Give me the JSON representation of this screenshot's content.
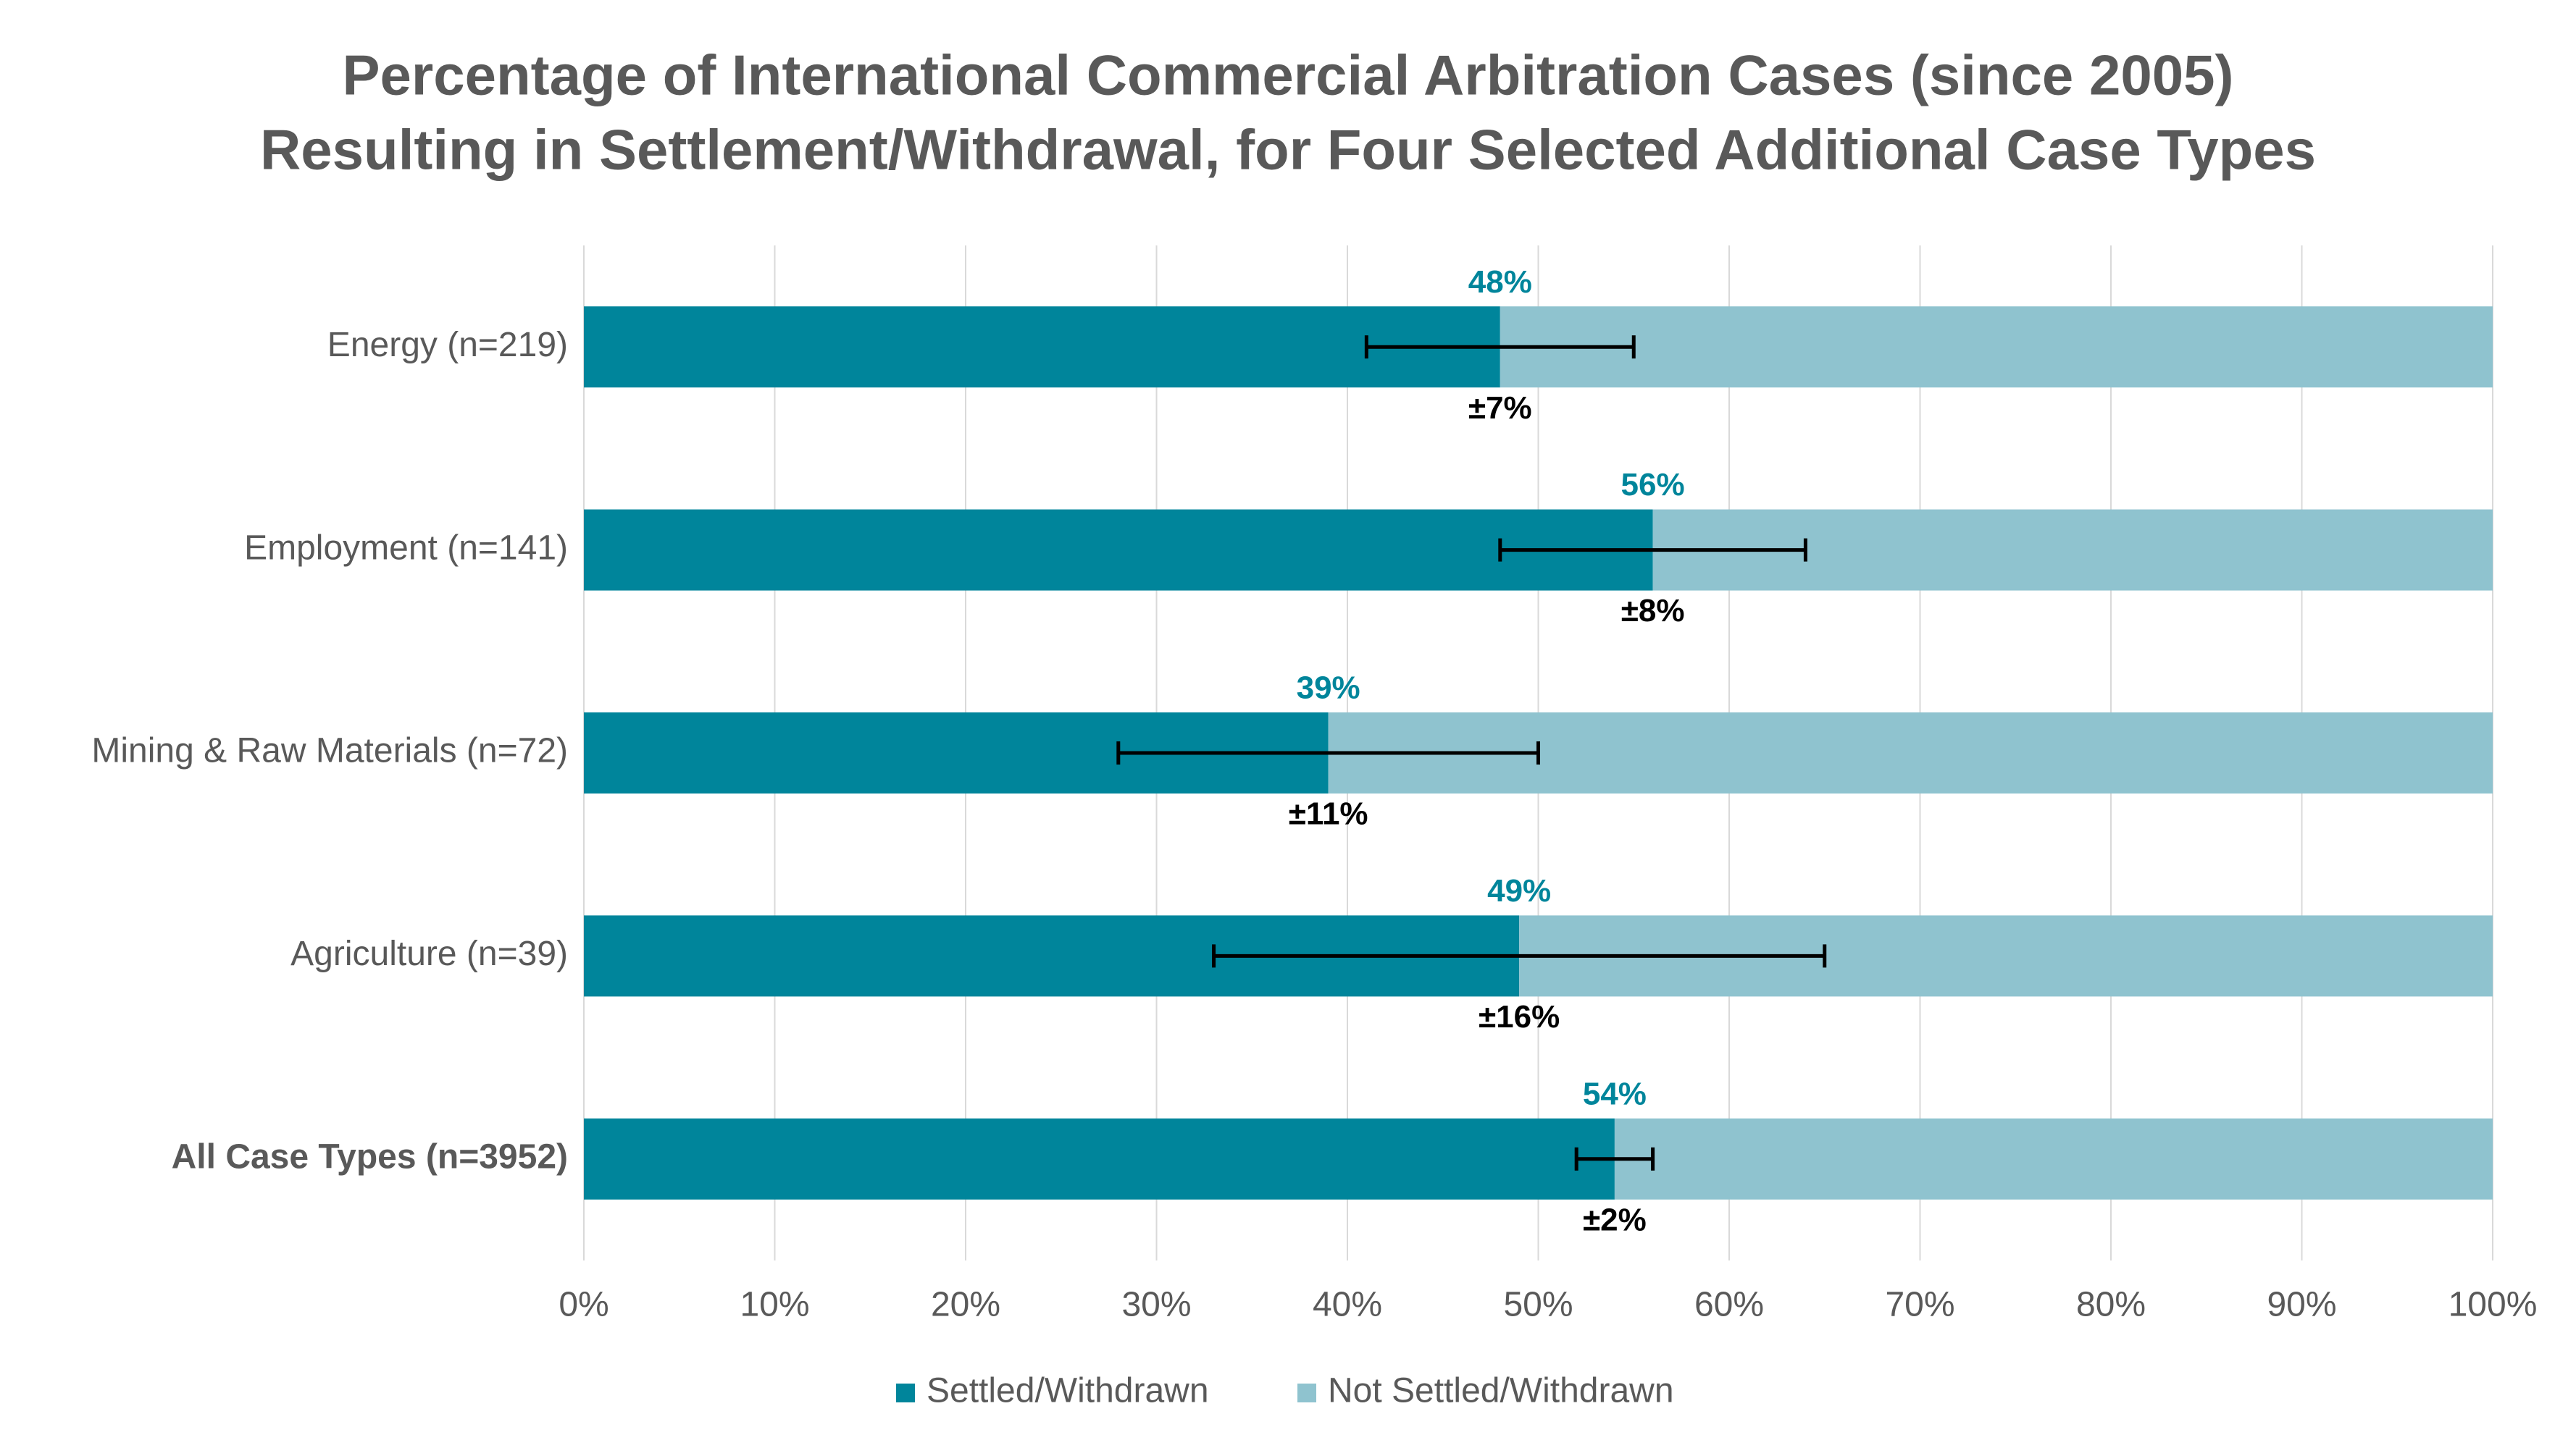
{
  "chart_data": {
    "type": "stacked-bar-horizontal",
    "title": "Percentage of International Commercial Arbitration Cases (since 2005)",
    "subtitle": "Resulting in Settlement/Withdrawal, for Four Selected Additional Case Types",
    "categories": [
      "Energy (n=219)",
      "Employment (n=141)",
      "Mining & Raw Materials (n=72)",
      "Agriculture (n=39)",
      "All Case Types (n=3952)"
    ],
    "series": [
      {
        "name": "Settled/Withdrawn",
        "color": "#00859b",
        "values": [
          48,
          56,
          39,
          49,
          54
        ],
        "value_labels": [
          "48%",
          "56%",
          "39%",
          "49%",
          "54%"
        ]
      },
      {
        "name": "Not Settled/Withdrawn",
        "color": "#8fc3cf",
        "values": [
          52,
          44,
          61,
          51,
          46
        ]
      }
    ],
    "errors": [
      7,
      8,
      11,
      16,
      2
    ],
    "error_labels": [
      "±7%",
      "±8%",
      "±11%",
      "±16%",
      "±2%"
    ],
    "xlim": [
      0,
      100
    ],
    "xticks": [
      {
        "value": 0,
        "label": "0%"
      },
      {
        "value": 10,
        "label": "10%"
      },
      {
        "value": 20,
        "label": "20%"
      },
      {
        "value": 30,
        "label": "30%"
      },
      {
        "value": 40,
        "label": "40%"
      },
      {
        "value": 50,
        "label": "50%"
      },
      {
        "value": 60,
        "label": "60%"
      },
      {
        "value": 70,
        "label": "70%"
      },
      {
        "value": 80,
        "label": "80%"
      },
      {
        "value": 90,
        "label": "90%"
      },
      {
        "value": 100,
        "label": "100%"
      }
    ],
    "grid": true,
    "legend": "bottom"
  }
}
